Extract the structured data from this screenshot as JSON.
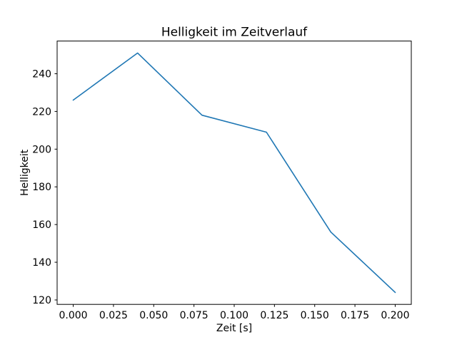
{
  "chart_data": {
    "type": "line",
    "title": "Helligkeit im Zeitverlauf",
    "xlabel": "Zeit [s]",
    "ylabel": "Helligkeit",
    "x": [
      0.0,
      0.04,
      0.08,
      0.12,
      0.16,
      0.2
    ],
    "series": [
      {
        "name": "Helligkeit",
        "values": [
          226,
          251,
          218,
          209,
          156,
          124
        ],
        "color": "#1f77b4"
      }
    ],
    "xlim": [
      -0.01,
      0.21
    ],
    "ylim": [
      117.65,
      257.35
    ],
    "xticks": [
      0.0,
      0.025,
      0.05,
      0.075,
      0.1,
      0.125,
      0.15,
      0.175,
      0.2
    ],
    "xtick_labels": [
      "0.000",
      "0.025",
      "0.050",
      "0.075",
      "0.100",
      "0.125",
      "0.150",
      "0.175",
      "0.200"
    ],
    "yticks": [
      120,
      140,
      160,
      180,
      200,
      220,
      240
    ],
    "ytick_labels": [
      "120",
      "140",
      "160",
      "180",
      "200",
      "220",
      "240"
    ],
    "grid": false,
    "legend": null,
    "background": "#ffffff",
    "text_color": "#000000"
  }
}
